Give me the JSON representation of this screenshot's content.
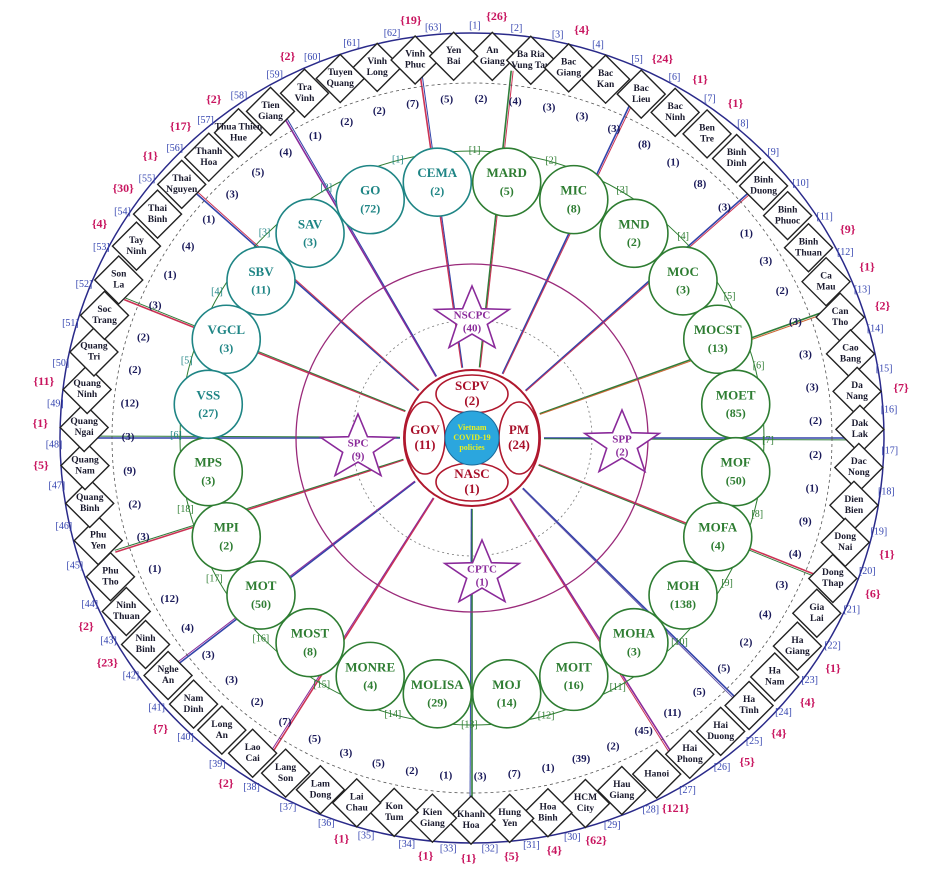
{
  "center": {
    "label": [
      "Vietnam",
      "COVID-19",
      "policies"
    ]
  },
  "core": [
    {
      "name": "SCPV",
      "count": "(2)"
    },
    {
      "name": "PM",
      "count": "(24)"
    },
    {
      "name": "NASC",
      "count": "(1)"
    },
    {
      "name": "GOV",
      "count": "(11)"
    }
  ],
  "stars": [
    {
      "name": "NSCPC",
      "count": "(40)"
    },
    {
      "name": "SPP",
      "count": "(2)"
    },
    {
      "name": "CPTC",
      "count": "(1)"
    },
    {
      "name": "SPC",
      "count": "(9)"
    }
  ],
  "ministries": {
    "color": "#2e7d32",
    "items": [
      {
        "index": "[1]",
        "name": "MARD",
        "count": "(5)"
      },
      {
        "index": "[2]",
        "name": "MIC",
        "count": "(8)"
      },
      {
        "index": "[3]",
        "name": "MND",
        "count": "(2)"
      },
      {
        "index": "[4]",
        "name": "MOC",
        "count": "(3)"
      },
      {
        "index": "[5]",
        "name": "MOCST",
        "count": "(13)"
      },
      {
        "index": "[6]",
        "name": "MOET",
        "count": "(85)"
      },
      {
        "index": "[7]",
        "name": "MOF",
        "count": "(50)"
      },
      {
        "index": "[8]",
        "name": "MOFA",
        "count": "(4)"
      },
      {
        "index": "[9]",
        "name": "MOH",
        "count": "(138)"
      },
      {
        "index": "[10]",
        "name": "MOHA",
        "count": "(3)"
      },
      {
        "index": "[11]",
        "name": "MOIT",
        "count": "(16)"
      },
      {
        "index": "[12]",
        "name": "MOJ",
        "count": "(14)"
      },
      {
        "index": "[13]",
        "name": "MOLISA",
        "count": "(29)"
      },
      {
        "index": "[14]",
        "name": "MONRE",
        "count": "(4)"
      },
      {
        "index": "[15]",
        "name": "MOST",
        "count": "(8)"
      },
      {
        "index": "[16]",
        "name": "MOT",
        "count": "(50)"
      },
      {
        "index": "[17]",
        "name": "MPI",
        "count": "(2)"
      },
      {
        "index": "[18]",
        "name": "MPS",
        "count": "(3)"
      }
    ]
  },
  "agencies": {
    "color": "#1f8585",
    "items": [
      {
        "index": "[1]",
        "name": "CEMA",
        "count": "(2)"
      },
      {
        "index": "[2]",
        "name": "GO",
        "count": "(72)"
      },
      {
        "index": "[3]",
        "name": "SAV",
        "count": "(3)"
      },
      {
        "index": "[4]",
        "name": "SBV",
        "count": "(11)"
      },
      {
        "index": "[5]",
        "name": "VGCL",
        "count": "(3)"
      },
      {
        "index": "[6]",
        "name": "VSS",
        "count": "(27)"
      }
    ]
  },
  "provinces": [
    {
      "index": "[1]",
      "name": [
        "An",
        "Giang"
      ],
      "count": "(2)",
      "extra": "{26}"
    },
    {
      "index": "[2]",
      "name": [
        "Ba Ria",
        "Vung Tau"
      ],
      "count": "(4)"
    },
    {
      "index": "[3]",
      "name": [
        "Bac",
        "Giang"
      ],
      "count": "(3)",
      "extra": "{4}"
    },
    {
      "index": "[4]",
      "name": [
        "Bac",
        "Kan"
      ],
      "count": "(3)"
    },
    {
      "index": "[5]",
      "name": [
        "Bac",
        "Lieu"
      ],
      "count": "(3)",
      "extra": "{24}"
    },
    {
      "index": "[6]",
      "name": [
        "Bac",
        "Ninh"
      ],
      "count": "(8)",
      "extra": "{1}"
    },
    {
      "index": "[7]",
      "name": [
        "Ben",
        "Tre"
      ],
      "count": "(1)",
      "extra": "{1}"
    },
    {
      "index": "[8]",
      "name": [
        "Binh",
        "Dinh"
      ],
      "count": "(8)"
    },
    {
      "index": "[9]",
      "name": [
        "Binh",
        "Duong"
      ],
      "count": "(3)"
    },
    {
      "index": "[10]",
      "name": [
        "Binh",
        "Phuoc"
      ],
      "count": "(1)"
    },
    {
      "index": "[11]",
      "name": [
        "Binh",
        "Thuan"
      ],
      "count": "(3)",
      "extra": "{9}"
    },
    {
      "index": "[12]",
      "name": [
        "Ca",
        "Mau"
      ],
      "count": "(2)",
      "extra": "{1}"
    },
    {
      "index": "[13]",
      "name": [
        "Can",
        "Tho"
      ],
      "count": "(3)",
      "extra": "{2}"
    },
    {
      "index": "[14]",
      "name": [
        "Cao",
        "Bang"
      ],
      "count": "(3)"
    },
    {
      "index": "[15]",
      "name": [
        "Da",
        "Nang"
      ],
      "count": "(3)",
      "extra": "{7}"
    },
    {
      "index": "[16]",
      "name": [
        "Dak",
        "Lak"
      ],
      "count": "(2)"
    },
    {
      "index": "[17]",
      "name": [
        "Dac",
        "Nong"
      ],
      "count": "(2)"
    },
    {
      "index": "[18]",
      "name": [
        "Dien",
        "Bien"
      ],
      "count": "(1)"
    },
    {
      "index": "[19]",
      "name": [
        "Dong",
        "Nai"
      ],
      "count": "(9)",
      "extra": "{1}"
    },
    {
      "index": "[20]",
      "name": [
        "Dong",
        "Thap"
      ],
      "count": "(4)",
      "extra": "{6}"
    },
    {
      "index": "[21]",
      "name": [
        "Gia",
        "Lai"
      ],
      "count": "(3)"
    },
    {
      "index": "[22]",
      "name": [
        "Ha",
        "Giang"
      ],
      "count": "(4)",
      "extra": "{1}"
    },
    {
      "index": "[23]",
      "name": [
        "Ha",
        "Nam"
      ],
      "count": "(2)",
      "extra": "{4}"
    },
    {
      "index": "[24]",
      "name": [
        "Ha",
        "Tinh"
      ],
      "count": "(5)",
      "extra": "{4}"
    },
    {
      "index": "[25]",
      "name": [
        "Hai",
        "Duong"
      ],
      "count": "(5)",
      "extra": "{5}"
    },
    {
      "index": "[26]",
      "name": [
        "Hai",
        "Phong"
      ],
      "count": "(11)"
    },
    {
      "index": "[27]",
      "name": [
        "Hanoi"
      ],
      "count": "(45)",
      "extra": "{121}"
    },
    {
      "index": "[28]",
      "name": [
        "Hau",
        "Giang"
      ],
      "count": "(2)"
    },
    {
      "index": "[29]",
      "name": [
        "HCM",
        "City"
      ],
      "count": "(39)",
      "extra": "{62}"
    },
    {
      "index": "[30]",
      "name": [
        "Hoa",
        "Binh"
      ],
      "count": "(1)",
      "extra": "{4}"
    },
    {
      "index": "[31]",
      "name": [
        "Hung",
        "Yen"
      ],
      "count": "(7)",
      "extra": "{5}"
    },
    {
      "index": "[32]",
      "name": [
        "Khanh",
        "Hoa"
      ],
      "count": "(3)",
      "extra": "{1}"
    },
    {
      "index": "[33]",
      "name": [
        "Kien",
        "Giang"
      ],
      "count": "(1)",
      "extra": "{1}"
    },
    {
      "index": "[34]",
      "name": [
        "Kon",
        "Tum"
      ],
      "count": "(2)"
    },
    {
      "index": "[35]",
      "name": [
        "Lai",
        "Chau"
      ],
      "count": "(5)",
      "extra": "{1}"
    },
    {
      "index": "[36]",
      "name": [
        "Lam",
        "Dong"
      ],
      "count": "(3)"
    },
    {
      "index": "[37]",
      "name": [
        "Lang",
        "Son"
      ],
      "count": "(5)"
    },
    {
      "index": "[38]",
      "name": [
        "Lao",
        "Cai"
      ],
      "count": "(7)",
      "extra": "{2}"
    },
    {
      "index": "[39]",
      "name": [
        "Long",
        "An"
      ],
      "count": "(2)"
    },
    {
      "index": "[40]",
      "name": [
        "Nam",
        "Dinh"
      ],
      "count": "(3)",
      "extra": "{7}"
    },
    {
      "index": "[41]",
      "name": [
        "Nghe",
        "An"
      ],
      "count": "(3)"
    },
    {
      "index": "[42]",
      "name": [
        "Ninh",
        "Binh"
      ],
      "count": "(4)",
      "extra": "{23}"
    },
    {
      "index": "[43]",
      "name": [
        "Ninh",
        "Thuan"
      ],
      "count": "(12)",
      "extra": "{2}"
    },
    {
      "index": "[44]",
      "name": [
        "Phu",
        "Tho"
      ],
      "count": "(1)"
    },
    {
      "index": "[45]",
      "name": [
        "Phu",
        "Yen"
      ],
      "count": "(3)"
    },
    {
      "index": "[46]",
      "name": [
        "Quang",
        "Binh"
      ],
      "count": "(2)"
    },
    {
      "index": "[47]",
      "name": [
        "Quang",
        "Nam"
      ],
      "count": "(9)",
      "extra": "{5}"
    },
    {
      "index": "[48]",
      "name": [
        "Quang",
        "Ngai"
      ],
      "count": "(3)",
      "extra": "{1}"
    },
    {
      "index": "[49]",
      "name": [
        "Quang",
        "Ninh"
      ],
      "count": "(12)",
      "extra": "{11}"
    },
    {
      "index": "[50]",
      "name": [
        "Quang",
        "Tri"
      ],
      "count": "(2)"
    },
    {
      "index": "[51]",
      "name": [
        "Soc",
        "Trang"
      ],
      "count": "(2)"
    },
    {
      "index": "[52]",
      "name": [
        "Son",
        "La"
      ],
      "count": "(3)"
    },
    {
      "index": "[53]",
      "name": [
        "Tay",
        "Ninh"
      ],
      "count": "(1)",
      "extra": "{4}"
    },
    {
      "index": "[54]",
      "name": [
        "Thai",
        "Binh"
      ],
      "count": "(4)",
      "extra": "{30}"
    },
    {
      "index": "[55]",
      "name": [
        "Thai",
        "Nguyen"
      ],
      "count": "(1)",
      "extra": "{1}"
    },
    {
      "index": "[56]",
      "name": [
        "Thanh",
        "Hoa"
      ],
      "count": "(3)",
      "extra": "{17}"
    },
    {
      "index": "[57]",
      "name": [
        "Thua Thien",
        "Hue"
      ],
      "count": "(5)",
      "extra": "{2}"
    },
    {
      "index": "[58]",
      "name": [
        "Tien",
        "Giang"
      ],
      "count": "(4)"
    },
    {
      "index": "[59]",
      "name": [
        "Tra",
        "Vinh"
      ],
      "count": "(1)",
      "extra": "{2}"
    },
    {
      "index": "[60]",
      "name": [
        "Tuyen",
        "Quang"
      ],
      "count": "(2)"
    },
    {
      "index": "[61]",
      "name": [
        "Vinh",
        "Long"
      ],
      "count": "(2)"
    },
    {
      "index": "[62]",
      "name": [
        "Vinh",
        "Phuc"
      ],
      "count": "(7)",
      "extra": "{19}"
    },
    {
      "index": "[63]",
      "name": [
        "Yen",
        "Bai"
      ],
      "count": "(5)"
    }
  ]
}
